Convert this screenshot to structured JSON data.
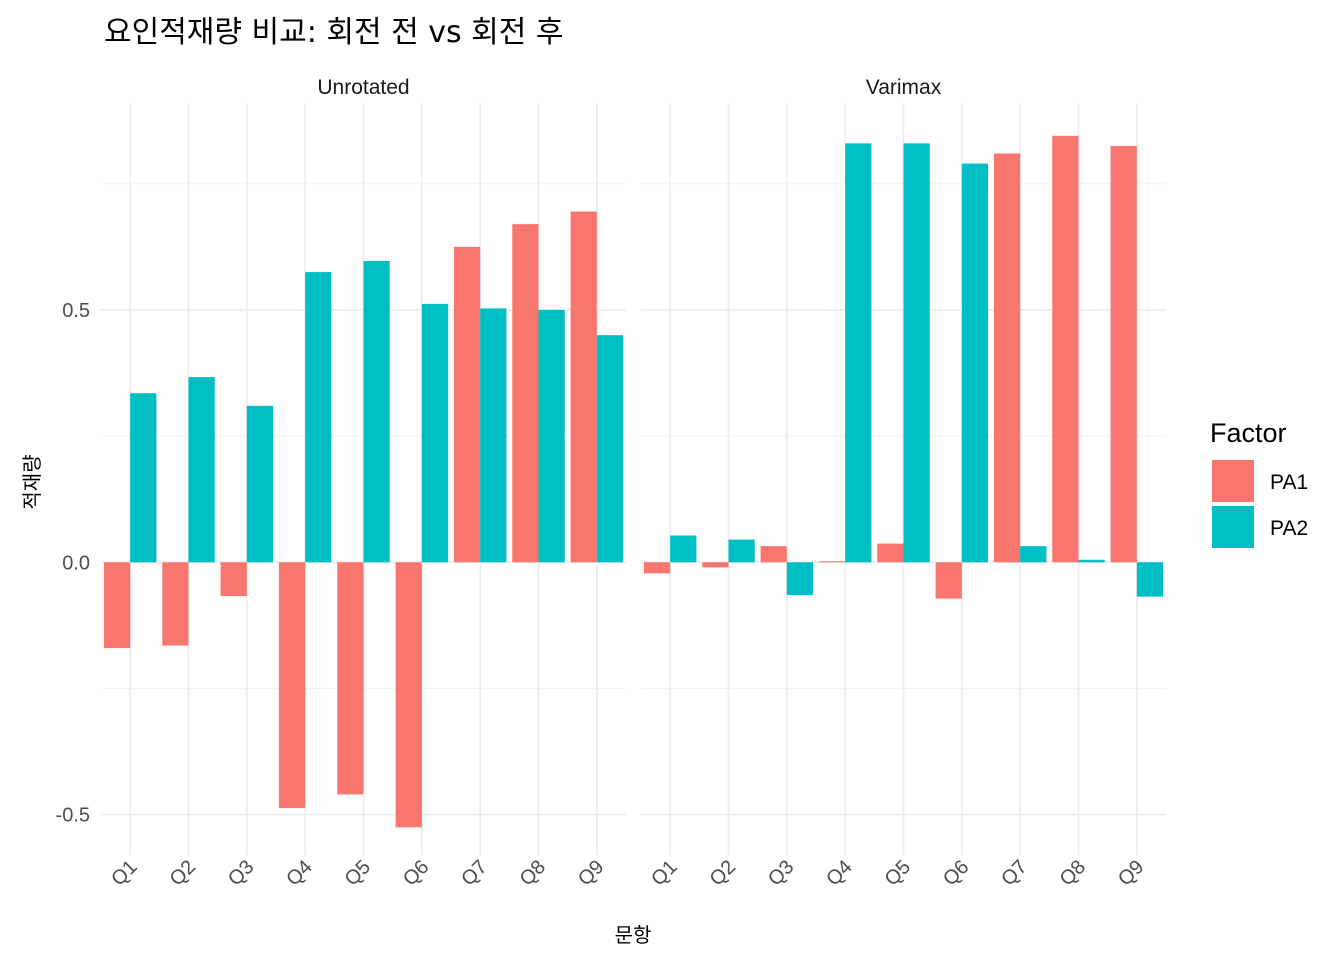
{
  "chart_data": {
    "type": "bar",
    "title": "요인적재량 비교: 회전 전 vs 회전 후",
    "xlabel": "문항",
    "ylabel": "적재량",
    "categories": [
      "Q1",
      "Q2",
      "Q3",
      "Q4",
      "Q5",
      "Q6",
      "Q7",
      "Q8",
      "Q9"
    ],
    "y_ticks": [
      -0.5,
      0.0,
      0.5
    ],
    "y_tick_labels": [
      "-0.5",
      "0.0",
      "0.5"
    ],
    "ylim": [
      -0.58,
      0.91
    ],
    "grid": true,
    "legend": {
      "title": "Factor",
      "position": "right",
      "entries": [
        {
          "name": "PA1",
          "color": "#F8766D"
        },
        {
          "name": "PA2",
          "color": "#00BFC4"
        }
      ]
    },
    "facets": [
      {
        "label": "Unrotated",
        "series": [
          {
            "name": "PA1",
            "values": [
              -0.17,
              -0.165,
              -0.067,
              -0.487,
              -0.46,
              -0.525,
              0.625,
              0.67,
              0.695
            ]
          },
          {
            "name": "PA2",
            "values": [
              0.335,
              0.367,
              0.31,
              0.575,
              0.597,
              0.512,
              0.503,
              0.5,
              0.45
            ]
          }
        ]
      },
      {
        "label": "Varimax",
        "series": [
          {
            "name": "PA1",
            "values": [
              -0.022,
              -0.01,
              0.032,
              0.002,
              0.037,
              -0.072,
              0.81,
              0.845,
              0.825
            ]
          },
          {
            "name": "PA2",
            "values": [
              0.053,
              0.045,
              -0.065,
              0.83,
              0.83,
              0.79,
              0.032,
              0.005,
              -0.068
            ]
          }
        ]
      }
    ]
  }
}
